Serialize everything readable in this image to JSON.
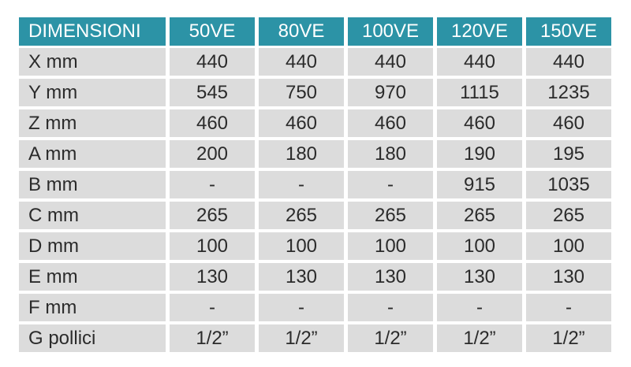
{
  "table": {
    "header": [
      "DIMENSIONI",
      "50VE",
      "80VE",
      "100VE",
      "120VE",
      "150VE"
    ],
    "rows": [
      [
        "X mm",
        "440",
        "440",
        "440",
        "440",
        "440"
      ],
      [
        "Y mm",
        "545",
        "750",
        "970",
        "1115",
        "1235"
      ],
      [
        "Z mm",
        "460",
        "460",
        "460",
        "460",
        "460"
      ],
      [
        "A mm",
        "200",
        "180",
        "180",
        "190",
        "195"
      ],
      [
        "B mm",
        "-",
        "-",
        "-",
        "915",
        "1035"
      ],
      [
        "C mm",
        "265",
        "265",
        "265",
        "265",
        "265"
      ],
      [
        "D mm",
        "100",
        "100",
        "100",
        "100",
        "100"
      ],
      [
        "E mm",
        "130",
        "130",
        "130",
        "130",
        "130"
      ],
      [
        "F mm",
        "-",
        "-",
        "-",
        "-",
        "-"
      ],
      [
        "G pollici",
        "1/2”",
        "1/2”",
        "1/2”",
        "1/2”",
        "1/2”"
      ]
    ]
  }
}
